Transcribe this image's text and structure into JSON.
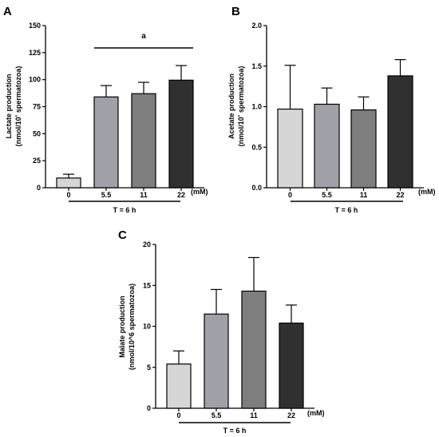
{
  "figure": {
    "charts": [
      {
        "panel": "A",
        "ylabel_line1": "Lactate production",
        "ylabel_line2_pre": "(nmol/10",
        "ylabel_line2_sup": "⁶",
        "ylabel_line2_post": " spermatozoa)",
        "ytick_labels": [
          "0",
          "25",
          "50",
          "75",
          "100",
          "125",
          "150"
        ],
        "unit_label": "(mM)",
        "time_label": "T = 6 h",
        "significance_label": "a"
      },
      {
        "panel": "B",
        "ylabel_line1": "Acetate production",
        "ylabel_line2_pre": "(nmol/10",
        "ylabel_line2_sup": "⁶",
        "ylabel_line2_post": " spermatozoa)",
        "ytick_labels": [
          "0.0",
          "0.5",
          "1.0",
          "1.5",
          "2.0"
        ],
        "unit_label": "(mM)",
        "time_label": "T = 6 h",
        "significance_label": ""
      },
      {
        "panel": "C",
        "ylabel_line1": "Malate production",
        "ylabel_line2_pre": "(nmol/10^6 spermatozoa)",
        "ylabel_line2_sup": "",
        "ylabel_line2_post": "",
        "ytick_labels": [
          "0",
          "5",
          "10",
          "15",
          "20"
        ],
        "unit_label": "(mM)",
        "time_label": "T = 6 h",
        "significance_label": ""
      }
    ]
  },
  "chart_data": [
    {
      "type": "bar",
      "title": "",
      "xlabel": "(mM)",
      "ylabel": "Lactate production (nmol/10^6 spermatozoa)",
      "categories": [
        "0",
        "5.5",
        "11",
        "22"
      ],
      "values": [
        9,
        84,
        87,
        99.5
      ],
      "errors": [
        3.5,
        10.5,
        10.5,
        13.5
      ],
      "ylim": [
        0,
        150
      ],
      "yticks": [
        0,
        25,
        50,
        75,
        100,
        125,
        150
      ],
      "bar_colors": [
        "#d6d6d6",
        "#a0a0a8",
        "#7e7e7e",
        "#303030"
      ],
      "significance": {
        "label": "a",
        "from": "5.5",
        "to": "22"
      },
      "grid": false
    },
    {
      "type": "bar",
      "title": "",
      "xlabel": "(mM)",
      "ylabel": "Acetate production (nmol/10^6 spermatozoa)",
      "categories": [
        "0",
        "5.5",
        "11",
        "22"
      ],
      "values": [
        0.97,
        1.03,
        0.96,
        1.38
      ],
      "errors": [
        0.54,
        0.2,
        0.16,
        0.2
      ],
      "ylim": [
        0,
        2.0
      ],
      "yticks": [
        0,
        0.5,
        1.0,
        1.5,
        2.0
      ],
      "bar_colors": [
        "#d6d6d6",
        "#a0a0a8",
        "#7e7e7e",
        "#303030"
      ],
      "grid": false
    },
    {
      "type": "bar",
      "title": "",
      "xlabel": "(mM)",
      "ylabel": "Malate production (nmol/10^6 spermatozoa)",
      "categories": [
        "0",
        "5.5",
        "11",
        "22"
      ],
      "values": [
        5.4,
        11.5,
        14.3,
        10.4
      ],
      "errors": [
        1.6,
        3.0,
        4.1,
        2.2
      ],
      "ylim": [
        0,
        20
      ],
      "yticks": [
        0,
        5,
        10,
        15,
        20
      ],
      "bar_colors": [
        "#d6d6d6",
        "#a0a0a8",
        "#7e7e7e",
        "#303030"
      ],
      "grid": false
    }
  ]
}
